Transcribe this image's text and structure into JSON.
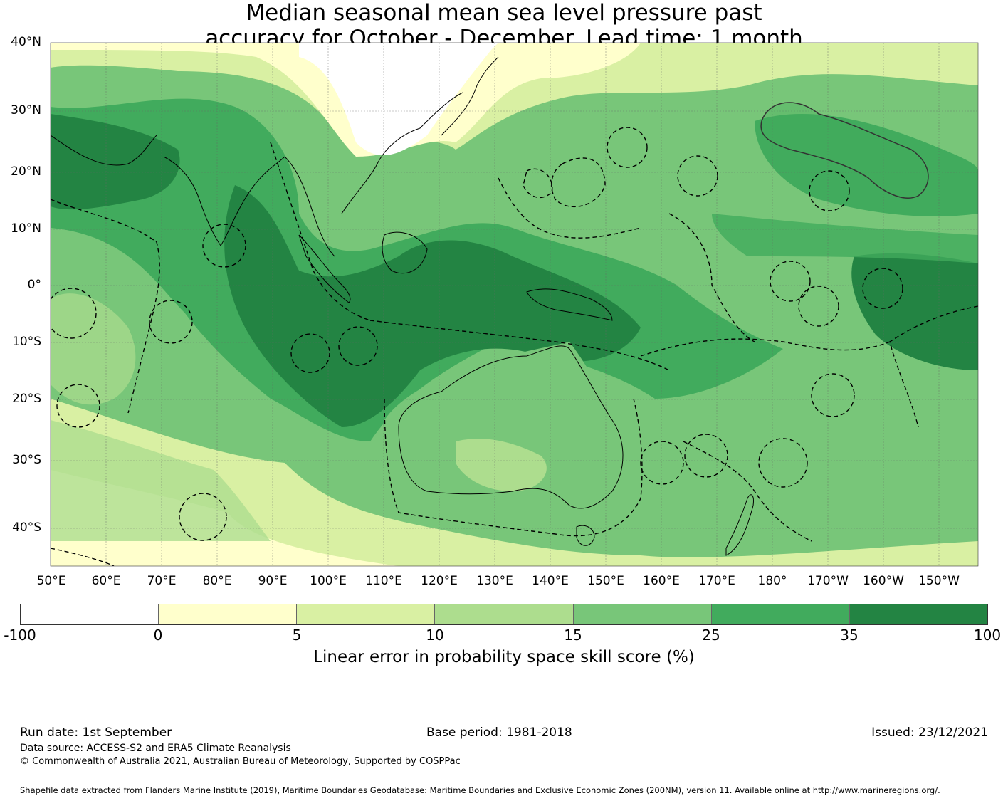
{
  "title": {
    "line1": "Median seasonal mean sea level pressure past",
    "line2": "accuracy for October - December. Lead time: 1 month"
  },
  "map": {
    "lat_labels": [
      "40°N",
      "30°N",
      "20°N",
      "10°N",
      "0°",
      "10°S",
      "20°S",
      "30°S",
      "40°S"
    ],
    "lon_labels": [
      "50°E",
      "60°E",
      "70°E",
      "80°E",
      "90°E",
      "100°E",
      "110°E",
      "120°E",
      "130°E",
      "140°E",
      "150°E",
      "160°E",
      "170°E",
      "180°",
      "170°W",
      "160°W",
      "150°W"
    ],
    "extent": {
      "lon_min": 50,
      "lon_max": 217,
      "lat_min": -45,
      "lat_max": 40
    },
    "gridlines": true,
    "overlays": [
      "coastlines",
      "maritime-boundaries-dashed"
    ]
  },
  "colorbar": {
    "ticks": [
      "-100",
      "0",
      "5",
      "10",
      "15",
      "25",
      "35",
      "100"
    ],
    "colors": [
      "#ffffff",
      "#ffffcc",
      "#d9f0a3",
      "#addd8e",
      "#78c679",
      "#41ab5d",
      "#238443"
    ],
    "label": "Linear error in probability space skill score (%)"
  },
  "footer": {
    "run_date": "Run date: 1st September",
    "base_period": "Base period: 1981-2018",
    "issued": "Issued: 23/12/2021",
    "data_source": "Data source: ACCESS-S2 and ERA5 Climate Reanalysis",
    "copyright": "© Commonwealth of Australia 2021, Australian Bureau of Meteorology, Supported by COSPPac",
    "shapefile": "Shapefile data extracted from Flanders Marine Institute (2019), Maritime Boundaries Geodatabase: Maritime Boundaries and Exclusive Economic Zones (200NM), version 11. Available online at http://www.marineregions.org/."
  }
}
